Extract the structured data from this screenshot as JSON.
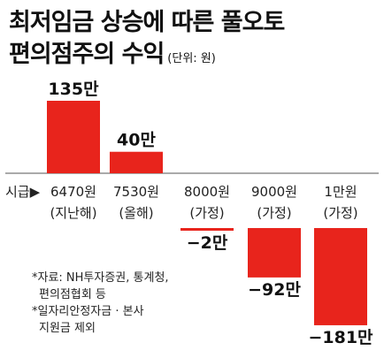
{
  "title_line1": "최저임금 상승에 따른 풀오토",
  "title_line2": "편의점주의 수익",
  "unit": "(단위: 원)",
  "axis_caption": "시급▶",
  "bar_color": "#e8241c",
  "notes": [
    "*자료: NH투자증권, 통계청,",
    "편의점협회 등",
    "*일자리안정자금 · 본사",
    "지원금 제외"
  ],
  "chart_data": {
    "type": "bar",
    "title": "최저임금 상승에 따른 풀오토 편의점주의 수익",
    "unit": "(단위: 원)",
    "categories": [
      "6470원",
      "7530원",
      "8000원",
      "9000원",
      "1만원"
    ],
    "category_sublabels": [
      "(지난해)",
      "(올해)",
      "(가정)",
      "(가정)",
      "(가정)"
    ],
    "values": [
      1350000,
      400000,
      -20000,
      -920000,
      -1810000
    ],
    "value_labels": [
      "135만",
      "40만",
      "−2만",
      "−92만",
      "−181만"
    ],
    "ylim": [
      -1850000,
      1450000
    ],
    "grid": false,
    "legend": "none"
  }
}
